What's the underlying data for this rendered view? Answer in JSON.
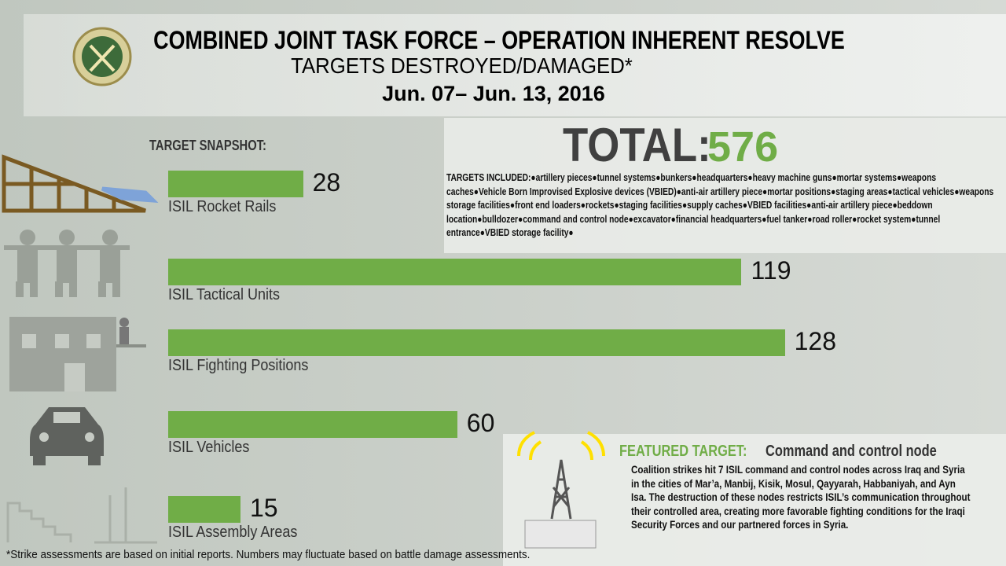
{
  "header": {
    "title": "COMBINED JOINT TASK FORCE – OPERATION INHERENT RESOLVE",
    "subtitle": "TARGETS DESTROYED/DAMAGED*",
    "dates": "Jun. 07– Jun. 13, 2016"
  },
  "chart_data": {
    "type": "bar",
    "orientation": "horizontal",
    "title": "TARGET SNAPSHOT:",
    "categories": [
      "ISIL Rocket Rails",
      "ISIL Tactical Units",
      "ISIL Fighting Positions",
      "ISIL Vehicles",
      "ISIL Assembly Areas"
    ],
    "values": [
      28,
      119,
      128,
      60,
      15
    ],
    "color": "#70ad47"
  },
  "total": {
    "label": "TOTAL:",
    "value": 576
  },
  "targets_included": {
    "label": "TARGETS INCLUDED:",
    "text": "●artillery pieces●tunnel systems●bunkers●headquarters●heavy machine guns●mortar systems●weapons caches●Vehicle Born Improvised Explosive devices (VBIED)●anti-air artillery piece●mortar positions●staging areas●tactical vehicles●weapons storage facilities●front end loaders●rockets●staging facilities●supply caches●VBIED facilities●anti-air artillery piece●beddown location●bulldozer●command and control node●excavator●financial headquarters●fuel tanker●road roller●rocket system●tunnel entrance●VBIED storage facility●"
  },
  "featured": {
    "label": "FEATURED TARGET:",
    "name": "Command and control node",
    "text": "Coalition strikes hit 7 ISIL command and control nodes across Iraq and Syria in the cities of Mar’a, Manbij, Kisik, Mosul, Qayyarah, Habbaniyah, and Ayn Isa. The destruction of these nodes restricts ISIL’s communication throughout their controlled area, creating more favorable fighting conditions for the Iraqi Security Forces and our partnered forces in Syria."
  },
  "footnote": "*Strike assessments are based on initial reports. Numbers may fluctuate based on battle damage assessments."
}
